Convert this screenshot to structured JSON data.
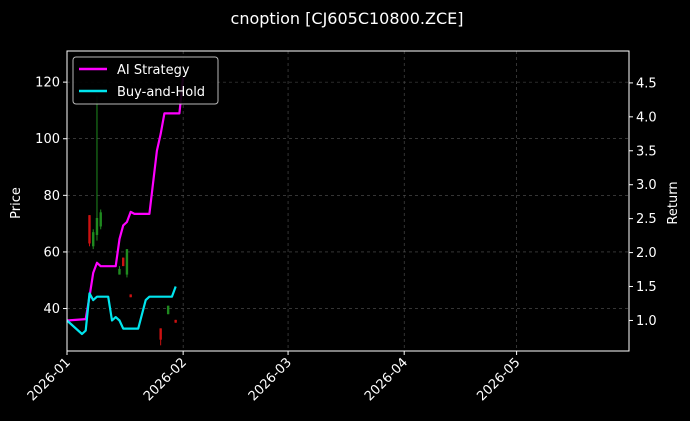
{
  "chart_data": {
    "type": "line",
    "title": "cnoption [CJ605C10800.ZCE]",
    "ylabel": "Price",
    "y2label": "Return",
    "grid": true,
    "legend_placement": "top-left",
    "xlim": [
      "2026-01-01",
      "2026-05-31"
    ],
    "ylim": [
      25,
      131
    ],
    "y2lim": [
      0.55,
      4.97
    ],
    "x_ticks": [
      "2026-01",
      "2026-02",
      "2026-03",
      "2026-04",
      "2026-05"
    ],
    "y_ticks": [
      40,
      60,
      80,
      100,
      120
    ],
    "y2_ticks": [
      "1.0",
      "1.5",
      "2.0",
      "2.5",
      "3.0",
      "3.5",
      "4.0",
      "4.5"
    ],
    "colors": {
      "ai_strategy": "#ff00ff",
      "buy_and_hold": "#00e5ee",
      "up": "#1f8a1f",
      "down": "#cc1111",
      "grid": "#555555"
    },
    "candles": [
      {
        "date": "2026-01-07",
        "open": 73.0,
        "close": 63.0,
        "high": 73.0,
        "low": 62.0
      },
      {
        "date": "2026-01-08",
        "open": 62.0,
        "close": 67.0,
        "high": 68.0,
        "low": 61.0
      },
      {
        "date": "2026-01-09",
        "open": 66.0,
        "close": 72.0,
        "high": 115.0,
        "low": 64.0
      },
      {
        "date": "2026-01-10",
        "open": 69.0,
        "close": 74.0,
        "high": 75.0,
        "low": 68.0
      },
      {
        "date": "2026-01-15",
        "open": 52.0,
        "close": 54.0,
        "high": 55.0,
        "low": 52.0
      },
      {
        "date": "2026-01-16",
        "open": 58.0,
        "close": 55.0,
        "high": 58.0,
        "low": 55.0
      },
      {
        "date": "2026-01-17",
        "open": 52.0,
        "close": 61.0,
        "high": 61.0,
        "low": 51.0
      },
      {
        "date": "2026-01-18",
        "open": 45.0,
        "close": 44.0,
        "high": 45.0,
        "low": 44.0
      },
      {
        "date": "2026-01-26",
        "open": 33.0,
        "close": 29.0,
        "high": 33.0,
        "low": 27.0
      },
      {
        "date": "2026-01-28",
        "open": 38.0,
        "close": 41.0,
        "high": 41.0,
        "low": 38.0
      },
      {
        "date": "2026-01-30",
        "open": 36.0,
        "close": 35.0,
        "high": 36.0,
        "low": 35.0
      }
    ],
    "series": [
      {
        "name": "AI Strategy",
        "axis": "right",
        "points": [
          [
            "2026-01-01",
            1.0
          ],
          [
            "2026-01-06",
            1.02
          ],
          [
            "2026-01-07",
            1.35
          ],
          [
            "2026-01-08",
            1.7
          ],
          [
            "2026-01-09",
            1.85
          ],
          [
            "2026-01-10",
            1.8
          ],
          [
            "2026-01-14",
            1.8
          ],
          [
            "2026-01-15",
            2.2
          ],
          [
            "2026-01-16",
            2.4
          ],
          [
            "2026-01-17",
            2.45
          ],
          [
            "2026-01-18",
            2.6
          ],
          [
            "2026-01-19",
            2.57
          ],
          [
            "2026-01-23",
            2.57
          ],
          [
            "2026-01-25",
            3.5
          ],
          [
            "2026-01-26",
            3.75
          ],
          [
            "2026-01-27",
            4.05
          ],
          [
            "2026-01-31",
            4.05
          ],
          [
            "2026-02-01",
            4.58
          ]
        ]
      },
      {
        "name": "Buy-and-Hold",
        "axis": "right",
        "points": [
          [
            "2026-01-01",
            1.0
          ],
          [
            "2026-01-05",
            0.8
          ],
          [
            "2026-01-06",
            0.85
          ],
          [
            "2026-01-07",
            1.4
          ],
          [
            "2026-01-08",
            1.3
          ],
          [
            "2026-01-09",
            1.35
          ],
          [
            "2026-01-12",
            1.35
          ],
          [
            "2026-01-13",
            1.0
          ],
          [
            "2026-01-14",
            1.05
          ],
          [
            "2026-01-15",
            1.0
          ],
          [
            "2026-01-16",
            0.88
          ],
          [
            "2026-01-19",
            0.88
          ],
          [
            "2026-01-20",
            0.88
          ],
          [
            "2026-01-22",
            1.3
          ],
          [
            "2026-01-23",
            1.35
          ],
          [
            "2026-01-29",
            1.35
          ],
          [
            "2026-01-30",
            1.5
          ]
        ]
      }
    ]
  }
}
